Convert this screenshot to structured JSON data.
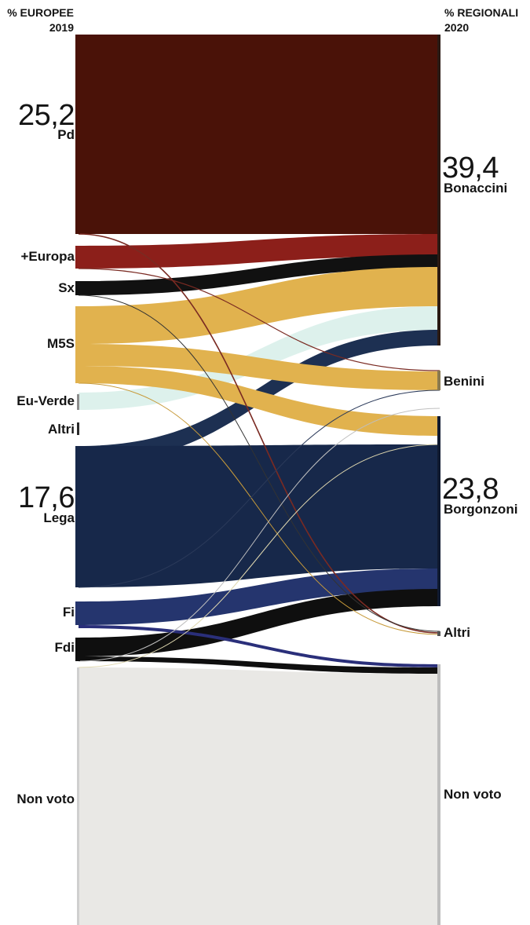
{
  "left_header": {
    "line1": "% EUROPEE",
    "line2": "2019"
  },
  "right_header": {
    "line1": "% REGIONALI",
    "line2": "2020"
  },
  "left_big": {
    "pd": "25,2",
    "lega": "17,6"
  },
  "right_big": {
    "bonaccini": "39,4",
    "borgonzoni": "23,8"
  },
  "chart_data": {
    "type": "sankey",
    "sources": [
      {
        "name": "Pd",
        "share": 25.2,
        "color": "#4a1208"
      },
      {
        "name": "+Europa",
        "color": "#8c1f1a"
      },
      {
        "name": "Sx",
        "color": "#111111"
      },
      {
        "name": "M5S",
        "color": "#e1b24e"
      },
      {
        "name": "Eu-Verde",
        "color": "#d9efea"
      },
      {
        "name": "Altri",
        "color": "#111111"
      },
      {
        "name": "Lega",
        "share": 17.6,
        "color": "#17284a"
      },
      {
        "name": "Fi",
        "color": "#25356e"
      },
      {
        "name": "Fdi",
        "color": "#0f0f0f"
      },
      {
        "name": "Non voto",
        "color": "#e9e8e5"
      }
    ],
    "targets": [
      {
        "name": "Bonaccini",
        "share": 39.4
      },
      {
        "name": "Benini"
      },
      {
        "name": "Borgonzoni",
        "share": 23.8
      },
      {
        "name": "Altri"
      },
      {
        "name": "Non voto"
      }
    ]
  }
}
